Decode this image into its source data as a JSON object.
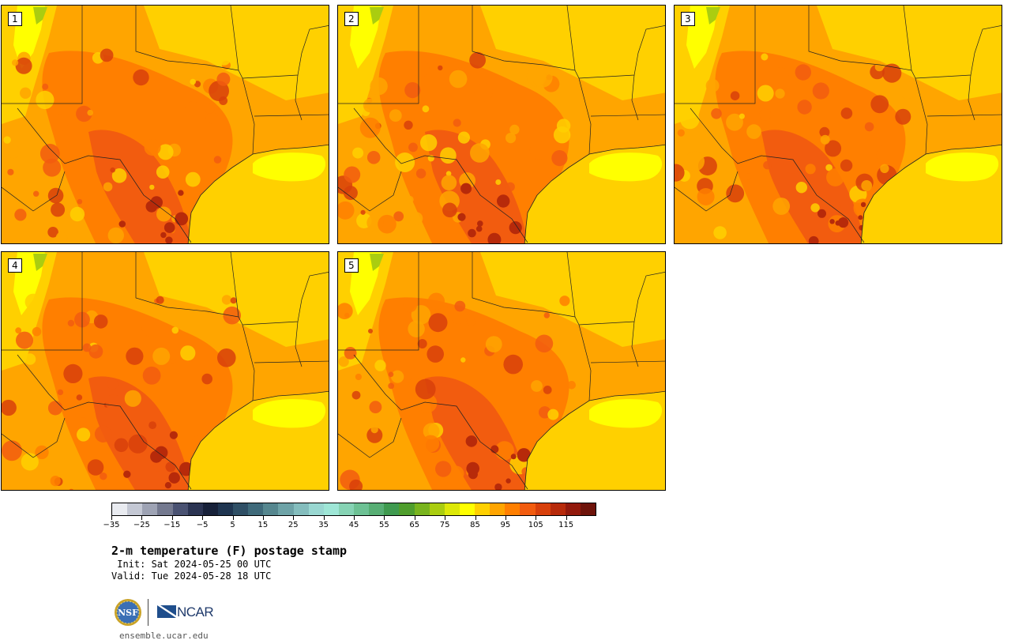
{
  "panels": [
    {
      "label": "1",
      "variant": 0
    },
    {
      "label": "2",
      "variant": 1
    },
    {
      "label": "3",
      "variant": 2
    },
    {
      "label": "4",
      "variant": 3
    },
    {
      "label": "5",
      "variant": 4
    }
  ],
  "colorbar": {
    "colors": [
      "#e9ebf0",
      "#c4c8d4",
      "#9ea3b4",
      "#74798f",
      "#4a5272",
      "#2b3452",
      "#172139",
      "#1f3550",
      "#2f4f65",
      "#3f6a7a",
      "#56878f",
      "#6ea3a7",
      "#84bdbd",
      "#99d7d1",
      "#9ee6d6",
      "#86d3b4",
      "#6dc194",
      "#57ae74",
      "#3f9a4f",
      "#4f9e2d",
      "#79b41e",
      "#aacd10",
      "#dde808",
      "#ffff00",
      "#ffd000",
      "#ffa500",
      "#ff7f00",
      "#f25c0f",
      "#d8400b",
      "#b72a0a",
      "#92190c",
      "#6e130a"
    ],
    "ticks": [
      "−35",
      "−25",
      "−15",
      "−5",
      "5",
      "15",
      "25",
      "35",
      "45",
      "55",
      "65",
      "75",
      "85",
      "95",
      "105",
      "115"
    ]
  },
  "title": "2-m temperature (F) postage stamp",
  "init": " Init: Sat 2024-05-25 00 UTC",
  "valid": "Valid: Tue 2024-05-28 18 UTC",
  "logos": {
    "ncar_text": "NCAR",
    "nsf_text": "NSF"
  },
  "website": "ensemble.ucar.edu"
}
